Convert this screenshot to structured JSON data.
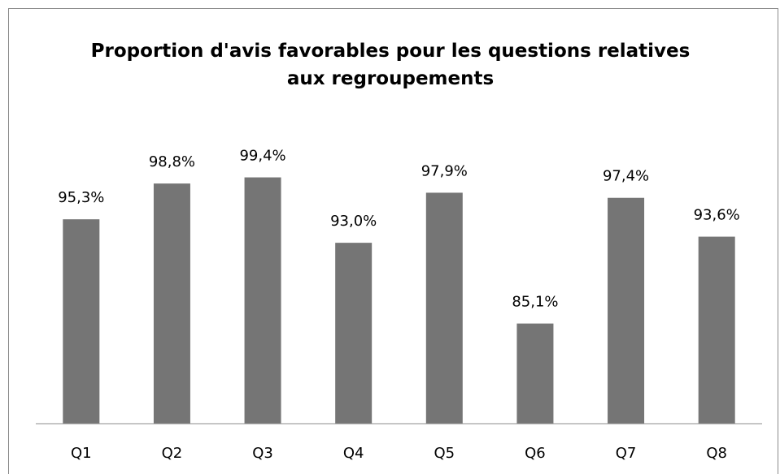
{
  "chart_data": {
    "type": "bar",
    "title": "Proportion d'avis favorables pour les questions relatives aux regroupements",
    "categories": [
      "Q1",
      "Q2",
      "Q3",
      "Q4",
      "Q5",
      "Q6",
      "Q7",
      "Q8"
    ],
    "values": [
      95.3,
      98.8,
      99.4,
      93.0,
      97.9,
      85.1,
      97.4,
      93.6
    ],
    "value_labels": [
      "95,3%",
      "98,8%",
      "99,4%",
      "93,0%",
      "97,9%",
      "85,1%",
      "97,4%",
      "93,6%"
    ],
    "color": "#757575",
    "ylim": [
      75.3,
      100
    ]
  }
}
